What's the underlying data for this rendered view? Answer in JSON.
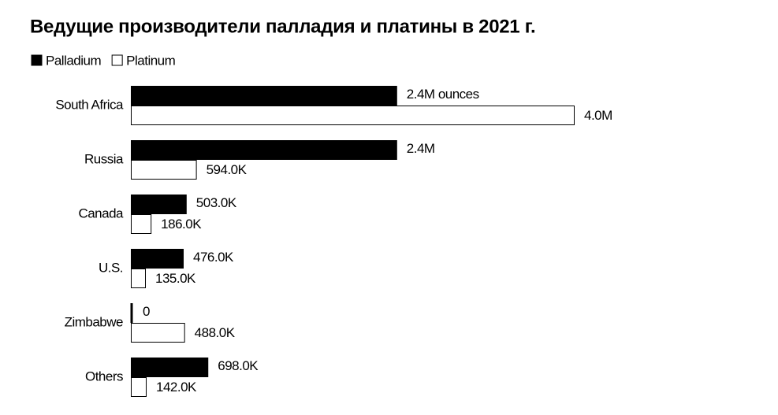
{
  "chart_data": {
    "type": "bar",
    "orientation": "horizontal",
    "title": "Ведущие производители палладия и платины в 2021 г.",
    "categories": [
      "South Africa",
      "Russia",
      "Canada",
      "U.S.",
      "Zimbabwe",
      "Others"
    ],
    "series": [
      {
        "name": "Palladium",
        "color": "#000000",
        "values": [
          2400000,
          2400000,
          503000,
          476000,
          0,
          698000
        ],
        "value_labels": [
          "2.4M ounces",
          "2.4M",
          "503.0K",
          "476.0K",
          "0",
          "698.0K"
        ]
      },
      {
        "name": "Platinum",
        "color": "#ffffff",
        "values": [
          4000000,
          594000,
          186000,
          135000,
          488000,
          142000
        ],
        "value_labels": [
          "4.0M",
          "594.0K",
          "186.0K",
          "135.0K",
          "488.0K",
          "142.0K"
        ]
      }
    ],
    "xlim": [
      0,
      4000000
    ],
    "legend": "top-left"
  }
}
